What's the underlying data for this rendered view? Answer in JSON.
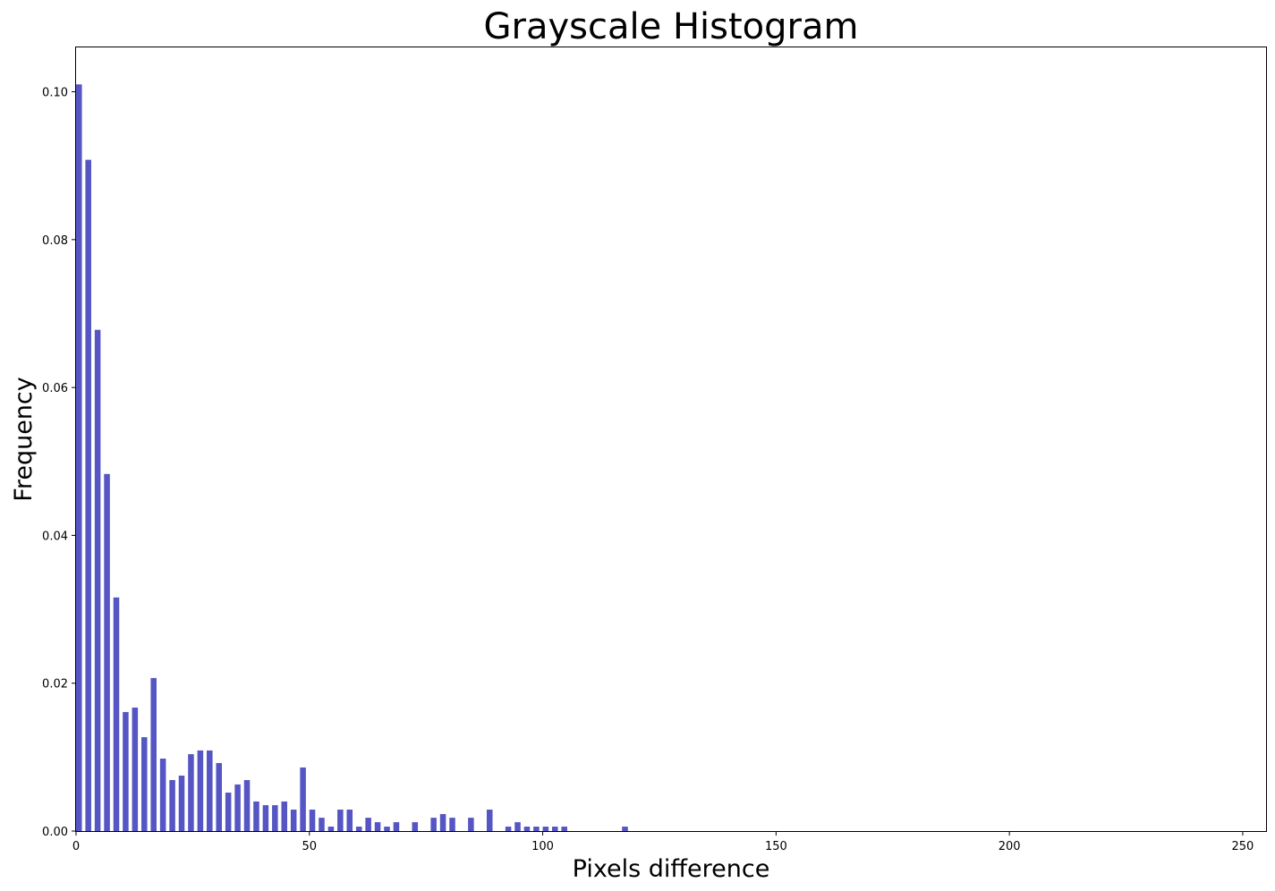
{
  "chart_data": {
    "type": "bar",
    "title": "Grayscale Histogram",
    "xlabel": "Pixels difference",
    "ylabel": "Frequency",
    "xlim": [
      0,
      255
    ],
    "ylim": [
      0,
      0.106
    ],
    "xticks": [
      0,
      50,
      100,
      150,
      200,
      250
    ],
    "xtick_labels": [
      "0",
      "50",
      "100",
      "150",
      "200",
      "250"
    ],
    "yticks": [
      0.0,
      0.02,
      0.04,
      0.06,
      0.08,
      0.1
    ],
    "ytick_labels": [
      "0.00",
      "0.02",
      "0.04",
      "0.06",
      "0.08",
      "0.10"
    ],
    "grid": false,
    "bar_color": "#5555c4",
    "x": [
      0,
      2,
      4,
      6,
      8,
      10,
      12,
      14,
      16,
      18,
      20,
      22,
      24,
      26,
      28,
      30,
      32,
      34,
      36,
      38,
      40,
      42,
      44,
      46,
      48,
      50,
      52,
      54,
      56,
      58,
      60,
      62,
      64,
      66,
      68,
      72,
      76,
      78,
      80,
      84,
      88,
      92,
      94,
      96,
      98,
      100,
      102,
      104,
      117
    ],
    "values": [
      0.101,
      0.0908,
      0.0678,
      0.0483,
      0.0316,
      0.0161,
      0.0167,
      0.0127,
      0.0207,
      0.0098,
      0.0069,
      0.0075,
      0.0104,
      0.0109,
      0.0109,
      0.0092,
      0.0052,
      0.0063,
      0.0069,
      0.004,
      0.0035,
      0.0035,
      0.004,
      0.0029,
      0.0086,
      0.0029,
      0.0018,
      0.0006,
      0.0029,
      0.0029,
      0.0006,
      0.0018,
      0.0012,
      0.0006,
      0.0012,
      0.0012,
      0.0018,
      0.0023,
      0.0018,
      0.0018,
      0.0029,
      0.0006,
      0.0012,
      0.0006,
      0.0006,
      0.0006,
      0.0006,
      0.0006,
      0.0006
    ]
  }
}
